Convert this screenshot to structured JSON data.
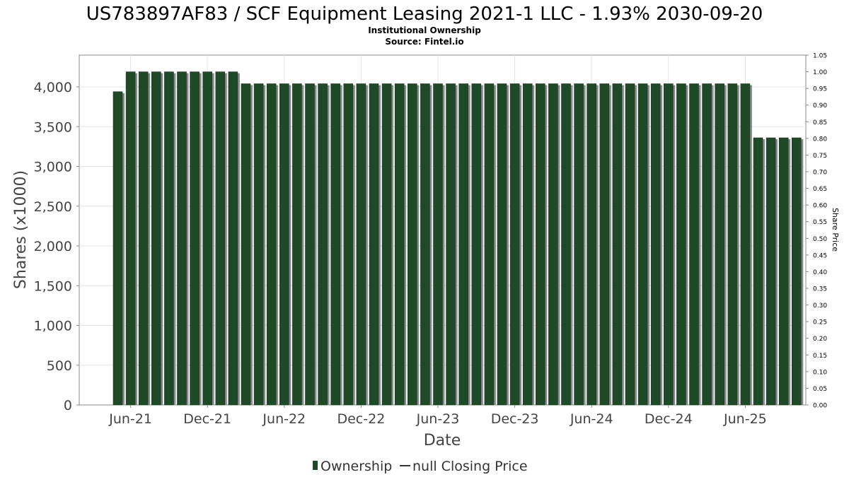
{
  "chart_data": {
    "type": "bar",
    "title": "US783897AF83 / SCF Equipment Leasing 2021-1 LLC - 1.93% 2030-09-20",
    "subtitle": "Institutional Ownership",
    "source": "Source: Fintel.io",
    "xlabel": "Date",
    "ylabel": "Shares (x1000)",
    "y2label": "Share Price",
    "ylim": [
      0,
      4400
    ],
    "y2lim": [
      0,
      1.05
    ],
    "yticks": [
      "0",
      "500",
      "1,000",
      "1,500",
      "2,000",
      "2,500",
      "3,000",
      "3,500",
      "4,000"
    ],
    "y2ticks": [
      "0.00",
      "0.05",
      "0.10",
      "0.15",
      "0.20",
      "0.25",
      "0.30",
      "0.35",
      "0.40",
      "0.45",
      "0.50",
      "0.55",
      "0.60",
      "0.65",
      "0.70",
      "0.75",
      "0.80",
      "0.85",
      "0.90",
      "0.95",
      "1.00",
      "1.05"
    ],
    "xticks": [
      "Jun-21",
      "Dec-21",
      "Jun-22",
      "Dec-22",
      "Jun-23",
      "Dec-23",
      "Jun-24",
      "Dec-24",
      "Jun-25"
    ],
    "x_start": "2021-05",
    "bar_interval": "month",
    "series": [
      {
        "name": "Ownership",
        "color": "#1f4a28",
        "values": [
          3940,
          4190,
          4190,
          4190,
          4190,
          4190,
          4190,
          4190,
          4190,
          4190,
          4040,
          4040,
          4040,
          4040,
          4040,
          4040,
          4040,
          4040,
          4040,
          4040,
          4040,
          4040,
          4040,
          4040,
          4040,
          4040,
          4040,
          4040,
          4040,
          4040,
          4040,
          4040,
          4040,
          4040,
          4040,
          4040,
          4040,
          4040,
          4040,
          4040,
          4040,
          4040,
          4040,
          4040,
          4040,
          4040,
          4040,
          4040,
          4040,
          4040,
          3360,
          3360,
          3360,
          3360
        ]
      }
    ],
    "legend": {
      "position": "bottom",
      "items": [
        "Ownership",
        "null Closing Price"
      ]
    },
    "grid": true
  }
}
